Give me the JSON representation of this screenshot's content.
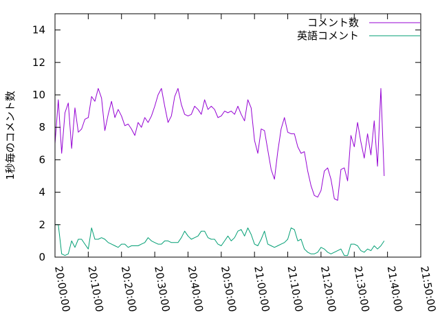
{
  "chart_data": {
    "type": "line",
    "title": "",
    "xlabel": "",
    "ylabel": "1秒毎のコメント数",
    "xlim": [
      "20:00:00",
      "21:50:00"
    ],
    "ylim": [
      0,
      15
    ],
    "x_ticks": [
      "20:00:00",
      "20:10:00",
      "20:20:00",
      "20:30:00",
      "20:40:00",
      "20:50:00",
      "21:00:00",
      "21:10:00",
      "21:20:00",
      "21:30:00",
      "21:40:00",
      "21:50:00"
    ],
    "y_ticks": [
      "0",
      "2",
      "4",
      "6",
      "8",
      "10",
      "12",
      "14"
    ],
    "legend_position": "top-right",
    "grid": false,
    "x_start": "20:00:00",
    "x_step": "1 minute",
    "series": [
      {
        "name": "コメント数",
        "color": "#9400d3",
        "values": [
          7.0,
          9.7,
          6.4,
          8.9,
          9.5,
          6.7,
          9.2,
          7.7,
          7.9,
          8.5,
          8.6,
          9.9,
          9.6,
          10.4,
          9.8,
          7.8,
          8.8,
          9.6,
          8.6,
          9.1,
          8.7,
          8.1,
          8.2,
          7.9,
          7.5,
          8.3,
          8.0,
          8.6,
          8.3,
          8.7,
          9.3,
          10.0,
          10.4,
          9.3,
          8.3,
          8.7,
          9.9,
          10.4,
          9.4,
          8.8,
          8.7,
          8.8,
          9.3,
          9.1,
          8.8,
          9.7,
          9.1,
          9.3,
          9.1,
          8.6,
          8.7,
          9.0,
          8.9,
          9.0,
          8.8,
          9.3,
          8.8,
          8.4,
          9.7,
          9.2,
          7.2,
          6.4,
          7.9,
          7.8,
          6.6,
          5.4,
          4.8,
          6.5,
          7.9,
          8.6,
          7.7,
          7.6,
          7.6,
          6.8,
          6.4,
          6.5,
          5.3,
          4.4,
          3.8,
          3.7,
          4.1,
          5.3,
          5.5,
          4.8,
          3.6,
          3.5,
          5.4,
          5.5,
          4.7,
          7.5,
          6.8,
          8.3,
          7.1,
          6.1,
          7.6,
          6.3,
          8.4,
          5.6,
          10.4,
          5.0
        ]
      },
      {
        "name": "英語コメント",
        "color": "#009e73",
        "values": [
          2.0,
          2.0,
          0.2,
          0.1,
          0.2,
          1.0,
          0.6,
          1.1,
          1.1,
          0.8,
          0.5,
          1.8,
          1.1,
          1.1,
          1.2,
          1.1,
          0.9,
          0.8,
          0.7,
          0.6,
          0.8,
          0.8,
          0.6,
          0.7,
          0.7,
          0.7,
          0.8,
          0.9,
          1.2,
          1.0,
          0.9,
          0.8,
          0.8,
          1.0,
          1.0,
          0.9,
          0.9,
          0.9,
          1.2,
          1.6,
          1.3,
          1.1,
          1.2,
          1.3,
          1.6,
          1.6,
          1.2,
          1.1,
          1.1,
          0.8,
          0.7,
          1.0,
          1.3,
          1.0,
          1.2,
          1.6,
          1.7,
          1.3,
          1.8,
          1.4,
          0.8,
          0.7,
          1.1,
          1.6,
          0.8,
          0.7,
          0.6,
          0.7,
          0.8,
          0.9,
          1.1,
          1.8,
          1.7,
          1.0,
          1.1,
          0.5,
          0.3,
          0.2,
          0.2,
          0.3,
          0.6,
          0.5,
          0.3,
          0.2,
          0.3,
          0.4,
          0.5,
          0.1,
          0.1,
          0.8,
          0.8,
          0.7,
          0.4,
          0.3,
          0.5,
          0.4,
          0.7,
          0.5,
          0.7,
          1.0
        ]
      }
    ]
  }
}
